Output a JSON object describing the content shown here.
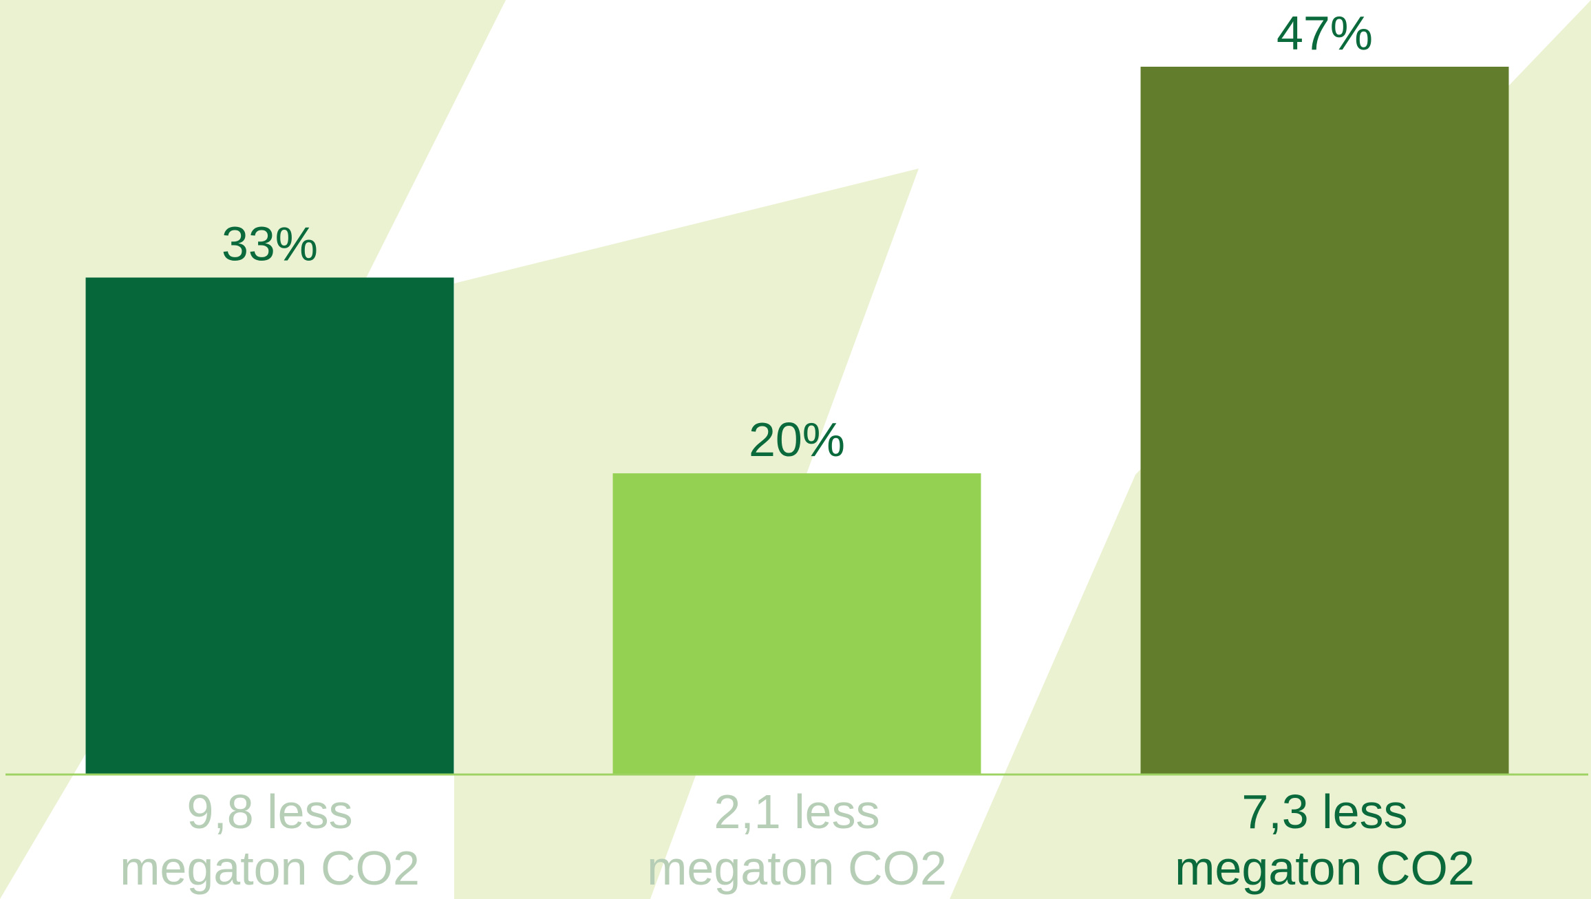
{
  "chart_data": {
    "type": "bar",
    "categories": [
      [
        "9,8 less",
        "megaton CO2"
      ],
      [
        "2,1 less",
        "megaton CO2"
      ],
      [
        "7,3 less",
        "megaton CO2"
      ]
    ],
    "values": [
      33,
      20,
      47
    ],
    "value_labels": [
      "33%",
      "20%",
      "47%"
    ],
    "ylim": [
      0,
      50
    ],
    "grid": false,
    "legend": "none",
    "colors": {
      "bars": [
        "#06673a",
        "#94d152",
        "#627d2b"
      ],
      "value_text": "#0a6a3b",
      "category_text": [
        "#b6cdb6",
        "#b6cdb6",
        "#0a6a3b"
      ],
      "baseline": "#9ed364",
      "background_shape": "#ebf2d2",
      "background": "#ffffff"
    }
  }
}
